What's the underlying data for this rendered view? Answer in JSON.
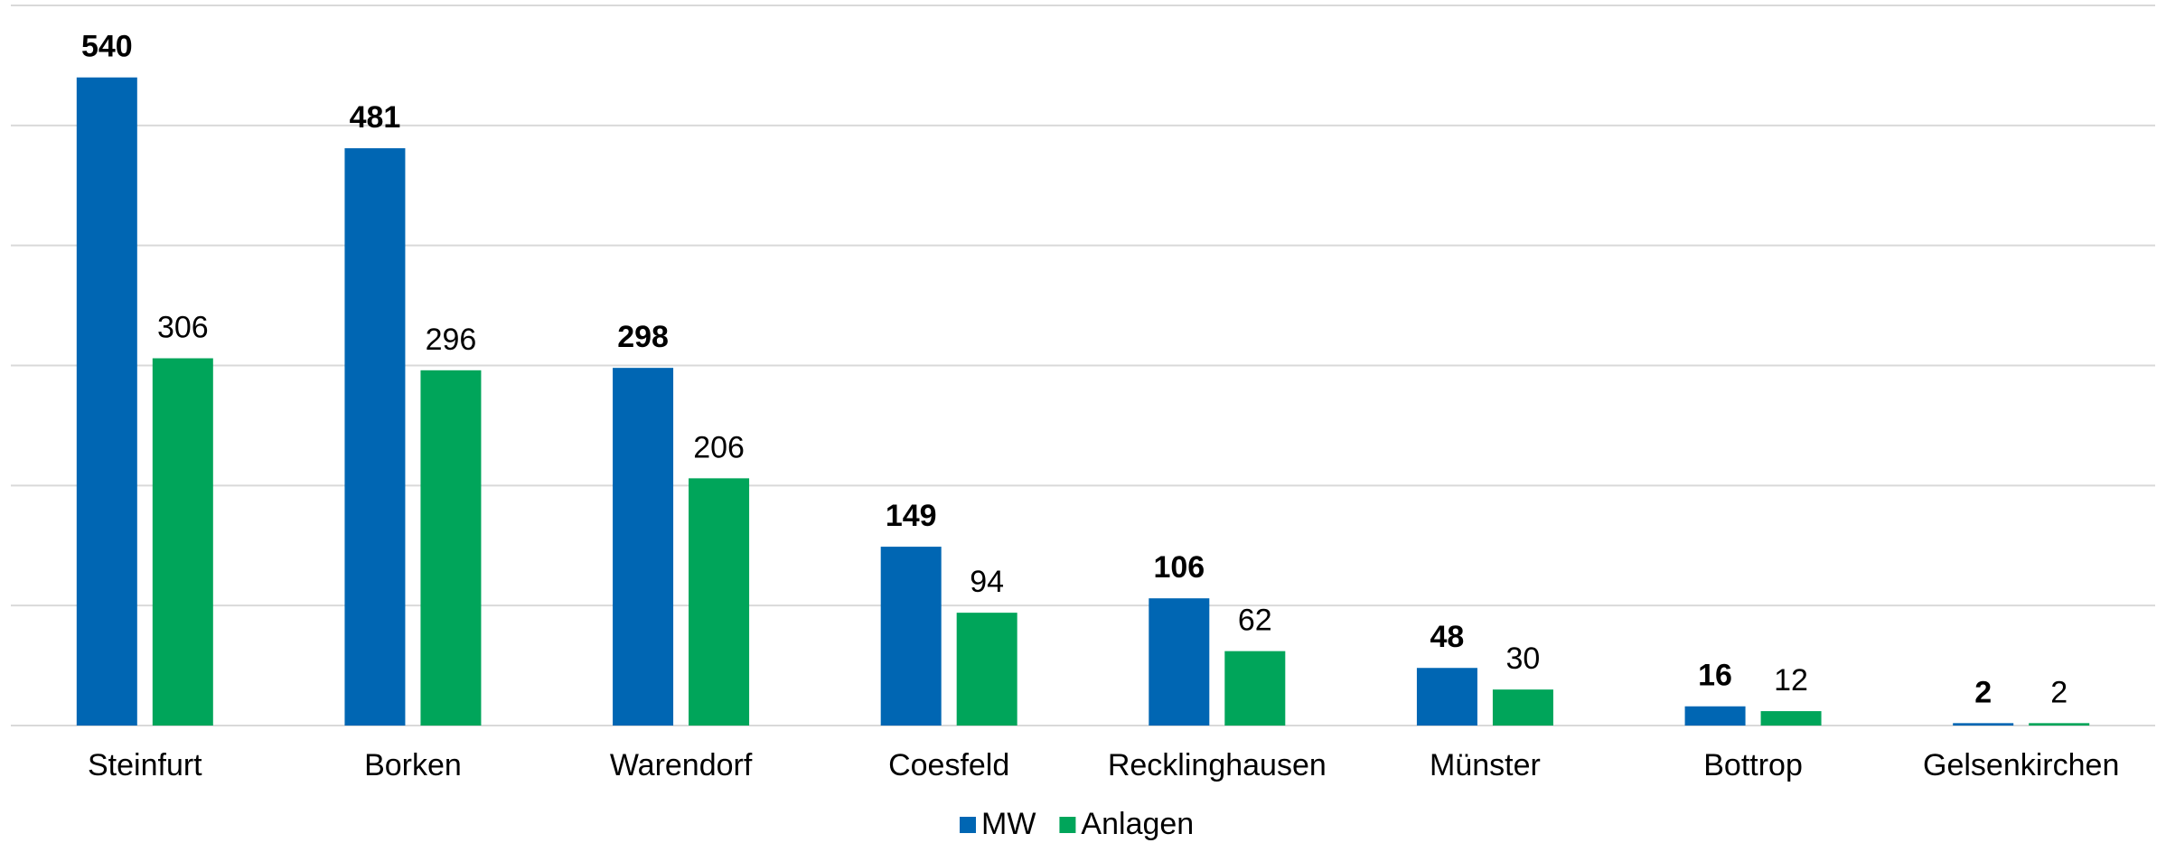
{
  "chart_data": {
    "type": "bar",
    "categories": [
      "Steinfurt",
      "Borken",
      "Warendorf",
      "Coesfeld",
      "Recklinghausen",
      "Münster",
      "Bottrop",
      "Gelsenkirchen"
    ],
    "series": [
      {
        "name": "MW",
        "color": "#0066b3",
        "values": [
          540,
          481,
          298,
          149,
          106,
          48,
          16,
          2
        ]
      },
      {
        "name": "Anlagen",
        "color": "#00a55a",
        "values": [
          306,
          296,
          206,
          94,
          62,
          30,
          12,
          2
        ]
      }
    ],
    "ylim": [
      0,
      600
    ],
    "yticks": [
      0,
      100,
      200,
      300,
      400,
      500,
      600
    ],
    "grid": true
  }
}
